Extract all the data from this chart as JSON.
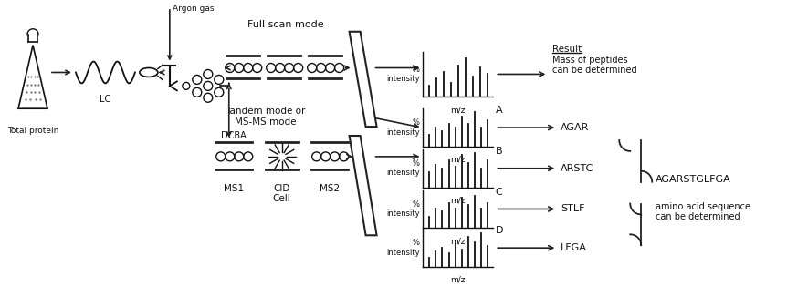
{
  "bg_color": "#ffffff",
  "text_color": "#111111",
  "fig_width": 8.85,
  "fig_height": 3.14,
  "labels": {
    "total_protein": "Total protein",
    "lc": "LC",
    "argon_gas": "Argon gas",
    "full_scan": "Full scan mode",
    "tandem_mode": "Tandem mode or\nMS-MS mode",
    "ms1": "MS1",
    "cid": "CID\nCell",
    "ms2": "MS2",
    "dcba": "DCBA",
    "result_title": "Result",
    "result_text": "Mass of peptides\ncan be determined",
    "agar": "AGAR",
    "arstc": "ARSTC",
    "stlf": "STLF",
    "lfga": "LFGA",
    "final_seq": "AGARSTGLFGA",
    "final_desc": "amino acid sequence\ncan be determined",
    "pct_intensity": "%\nintensity",
    "mz": "m/z"
  }
}
